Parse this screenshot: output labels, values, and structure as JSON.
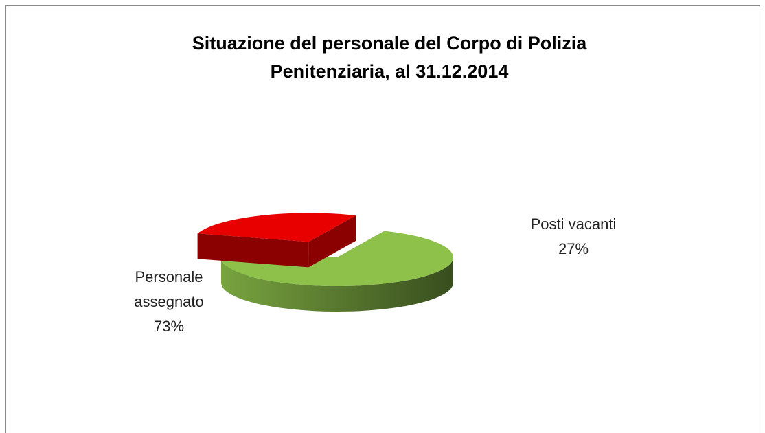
{
  "chart_data": {
    "type": "pie",
    "title": [
      "Situazione del personale del Corpo di Polizia",
      "Penitenziaria, al 31.12.2014"
    ],
    "categories": [
      "Personale assegnato",
      "Posti vacanti"
    ],
    "values": [
      73,
      27
    ],
    "value_labels": [
      "73%",
      "27%"
    ],
    "colors": [
      "#8dc14a",
      "#e80000"
    ]
  }
}
